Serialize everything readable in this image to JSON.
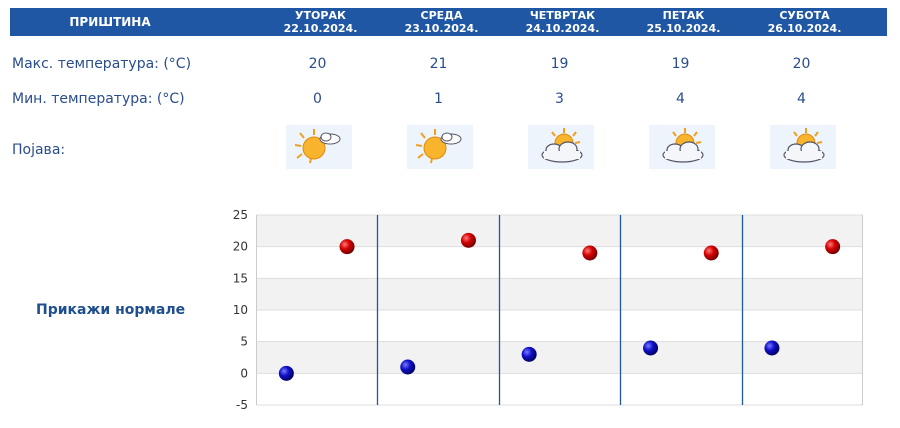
{
  "header": {
    "city": "ПРИШТИНА",
    "days": [
      {
        "name": "УТОРАК",
        "date": "22.10.2024."
      },
      {
        "name": "СРЕДА",
        "date": "23.10.2024."
      },
      {
        "name": "ЧЕТВРТАК",
        "date": "24.10.2024."
      },
      {
        "name": "ПЕТАК",
        "date": "25.10.2024."
      },
      {
        "name": "СУБОТА",
        "date": "26.10.2024."
      }
    ]
  },
  "rows": {
    "max_label": "Макс. температура: (°C)",
    "min_label": "Мин. температура: (°C)",
    "phenomenon_label": "Појава:"
  },
  "max_temps": [
    "20",
    "21",
    "19",
    "19",
    "20"
  ],
  "min_temps": [
    "0",
    "1",
    "3",
    "4",
    "4"
  ],
  "icons": [
    "sun-behind-small-cloud-icon",
    "sun-behind-small-cloud-icon",
    "partly-cloudy-icon",
    "partly-cloudy-icon",
    "partly-cloudy-icon"
  ],
  "normals_link": "Прикажи нормале",
  "colors": {
    "header_bg": "#1f57a5",
    "max_point": "#cc0000",
    "min_point": "#1010b0",
    "day_divider": "#1f57a5"
  },
  "chart_data": {
    "type": "scatter",
    "x": [
      "22.10.2024.",
      "23.10.2024.",
      "24.10.2024.",
      "25.10.2024.",
      "26.10.2024."
    ],
    "series": [
      {
        "values": [
          20,
          21,
          19,
          19,
          20
        ]
      },
      {
        "values": [
          0,
          1,
          3,
          4,
          4
        ]
      }
    ],
    "yticks": [
      "25",
      "20",
      "15",
      "10",
      "5",
      "0",
      "-5"
    ],
    "ylim": [
      -5,
      25
    ],
    "grid": true
  }
}
